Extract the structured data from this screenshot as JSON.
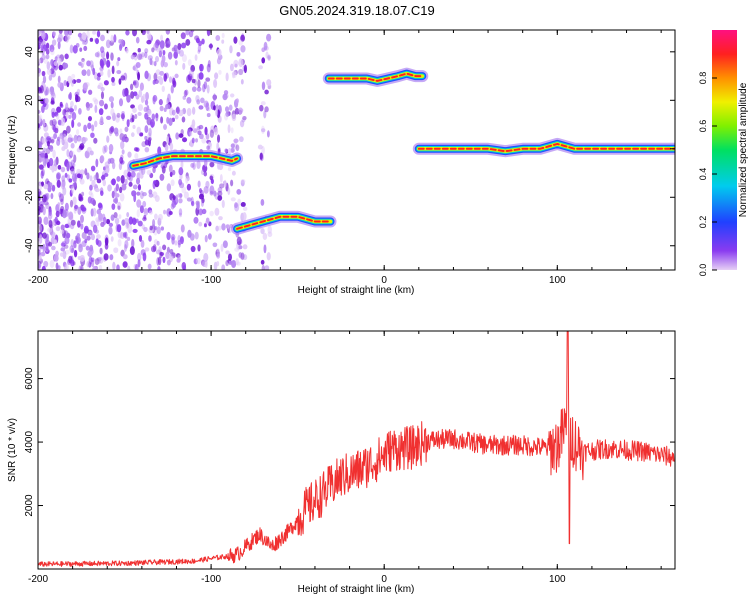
{
  "title": "GN05.2024.319.18.07.C19",
  "colors": {
    "snr_line": "#f03030",
    "spectrogram_scatter": "#7a1fe0",
    "ridge_core": "#ff2020",
    "ridge_halo": "#2050ff"
  },
  "chart_data": [
    {
      "type": "heatmap",
      "name": "spectrogram",
      "xlabel": "Height of straight line (km)",
      "ylabel": "Frequency (Hz)",
      "xlim": [
        -200,
        168
      ],
      "ylim": [
        -50,
        49
      ],
      "x_ticks": [
        -200,
        -100,
        0,
        100
      ],
      "y_ticks": [
        -40,
        -20,
        0,
        20,
        40
      ],
      "colorbar": {
        "label": "Normalized spectral amplitude",
        "range": [
          0,
          1
        ],
        "ticks": [
          "0.0",
          "0.2",
          "0.4",
          "0.6",
          "0.8"
        ],
        "colormap": "rainbow (violet-blue-cyan-green-yellow-red-magenta)"
      },
      "noise_region": {
        "x_range": [
          -200,
          -66
        ],
        "y_range": [
          -50,
          49
        ]
      },
      "ridges": [
        {
          "x": [
            -145,
            -138,
            -130,
            -122,
            -115,
            -108,
            -100,
            -94,
            -88,
            -85
          ],
          "y": [
            -7,
            -6,
            -4,
            -3,
            -3,
            -3,
            -3,
            -4,
            -5,
            -4
          ]
        },
        {
          "x": [
            -85,
            -80,
            -75,
            -70,
            -65,
            -60,
            -55,
            -50,
            -45,
            -40,
            -35,
            -31
          ],
          "y": [
            -33,
            -32,
            -31,
            -30,
            -29,
            -28,
            -28,
            -28,
            -29,
            -30,
            -30,
            -30
          ]
        },
        {
          "x": [
            -32,
            -25,
            -18,
            -10,
            -4,
            2,
            8,
            13,
            18,
            22
          ],
          "y": [
            29,
            29,
            29,
            29,
            28,
            29,
            30,
            31,
            30,
            30
          ]
        },
        {
          "x": [
            20,
            30,
            40,
            50,
            60,
            70,
            80,
            90,
            95,
            100,
            110,
            120,
            130,
            140,
            150,
            160,
            168
          ],
          "y": [
            0,
            0,
            0,
            0,
            0,
            -1,
            0,
            0,
            1,
            2,
            0,
            0,
            0,
            0,
            0,
            0,
            0
          ]
        }
      ]
    },
    {
      "type": "line",
      "name": "snr",
      "xlabel": "Height of straight line (km)",
      "ylabel": "SNR (10 * v/v)",
      "xlim": [
        -200,
        168
      ],
      "ylim": [
        0,
        7500
      ],
      "x_ticks": [
        -200,
        -100,
        0,
        100
      ],
      "y_ticks": [
        2000,
        4000,
        6000
      ],
      "envelope": {
        "x": [
          -200,
          -150,
          -110,
          -85,
          -78,
          -72,
          -65,
          -55,
          -45,
          -35,
          -25,
          -15,
          -5,
          5,
          15,
          25,
          40,
          60,
          80,
          95,
          100,
          105,
          110,
          115,
          130,
          150,
          168
        ],
        "y": [
          150,
          180,
          250,
          450,
          800,
          1100,
          700,
          1200,
          1900,
          2400,
          2900,
          3100,
          3400,
          3800,
          3800,
          4050,
          4100,
          3900,
          3900,
          3800,
          3900,
          4500,
          4000,
          3700,
          3800,
          3700,
          3500
        ]
      },
      "peak": {
        "x": 106,
        "y": 7500
      },
      "dip": {
        "x": 107,
        "y": 800
      }
    }
  ]
}
